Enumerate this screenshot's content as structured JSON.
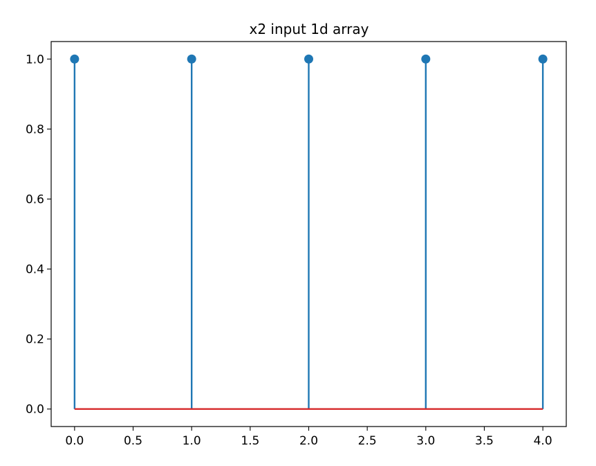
{
  "chart_data": {
    "type": "stem",
    "title": "x2 input 1d array",
    "xlabel": "",
    "ylabel": "",
    "x": [
      0,
      1,
      2,
      3,
      4
    ],
    "series": [
      {
        "values": [
          1,
          1,
          1,
          1,
          1
        ],
        "color": "#1f77b4"
      }
    ],
    "baseline": {
      "value": 0,
      "color": "#d62728"
    },
    "xlim": [
      -0.2,
      4.2
    ],
    "ylim": [
      -0.05,
      1.05
    ],
    "x_ticks": [
      0,
      0.5,
      1,
      1.5,
      2,
      2.5,
      3,
      3.5,
      4
    ],
    "x_tick_labels": [
      "0.0",
      "0.5",
      "1.0",
      "1.5",
      "2.0",
      "2.5",
      "3.0",
      "3.5",
      "4.0"
    ],
    "y_ticks": [
      0,
      0.2,
      0.4,
      0.6,
      0.8,
      1.0
    ],
    "y_tick_labels": [
      "0.0",
      "0.2",
      "0.4",
      "0.6",
      "0.8",
      "1.0"
    ],
    "grid": false,
    "legend": "none"
  }
}
